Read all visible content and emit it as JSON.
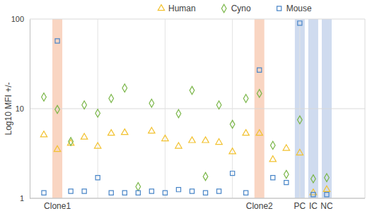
{
  "chart_data": {
    "type": "scatter",
    "y_label": "Log10 MFI +/-",
    "categories": [
      null,
      "Clone1",
      null,
      null,
      null,
      null,
      null,
      null,
      null,
      null,
      null,
      null,
      null,
      null,
      null,
      null,
      "Clone2",
      null,
      null,
      "PC",
      "IC",
      "NC"
    ],
    "colors": [
      null,
      "#f9d5c2",
      null,
      null,
      null,
      null,
      null,
      null,
      null,
      null,
      null,
      null,
      null,
      null,
      null,
      null,
      "#f9d5c2",
      null,
      null,
      "#cfdbef",
      "#cfdbef",
      "#cfdbef"
    ],
    "series": [
      {
        "name": "Human",
        "color": "#f2c12e",
        "marker": "triangle",
        "values": [
          5.1,
          3.5,
          4.1,
          4.8,
          3.8,
          5.3,
          5.4,
          null,
          5.6,
          4.6,
          3.8,
          4.4,
          4.4,
          4.2,
          3.3,
          5.3,
          5.3,
          2.7,
          3.6,
          3.2,
          1.15,
          1.25
        ]
      },
      {
        "name": "Cyno",
        "color": "#7ab648",
        "marker": "diamond",
        "values": [
          13.5,
          9.8,
          4.3,
          11,
          8.9,
          13,
          17,
          1.35,
          11.5,
          null,
          8.8,
          16,
          1.75,
          11,
          6.7,
          13,
          14.8,
          3.9,
          1.85,
          7.5,
          1.65,
          1.7
        ]
      },
      {
        "name": "Mouse",
        "color": "#4a86c8",
        "marker": "square",
        "values": [
          1.15,
          57,
          1.2,
          1.2,
          1.7,
          1.15,
          1.15,
          1.15,
          1.2,
          1.15,
          1.25,
          1.2,
          1.15,
          1.2,
          1.9,
          1.15,
          27,
          1.7,
          1.5,
          90,
          1.1,
          1.1
        ]
      }
    ],
    "ylim": [
      1,
      100
    ],
    "yticks": [
      1,
      10,
      100
    ],
    "log": "y",
    "grid": true,
    "legend": "top"
  }
}
